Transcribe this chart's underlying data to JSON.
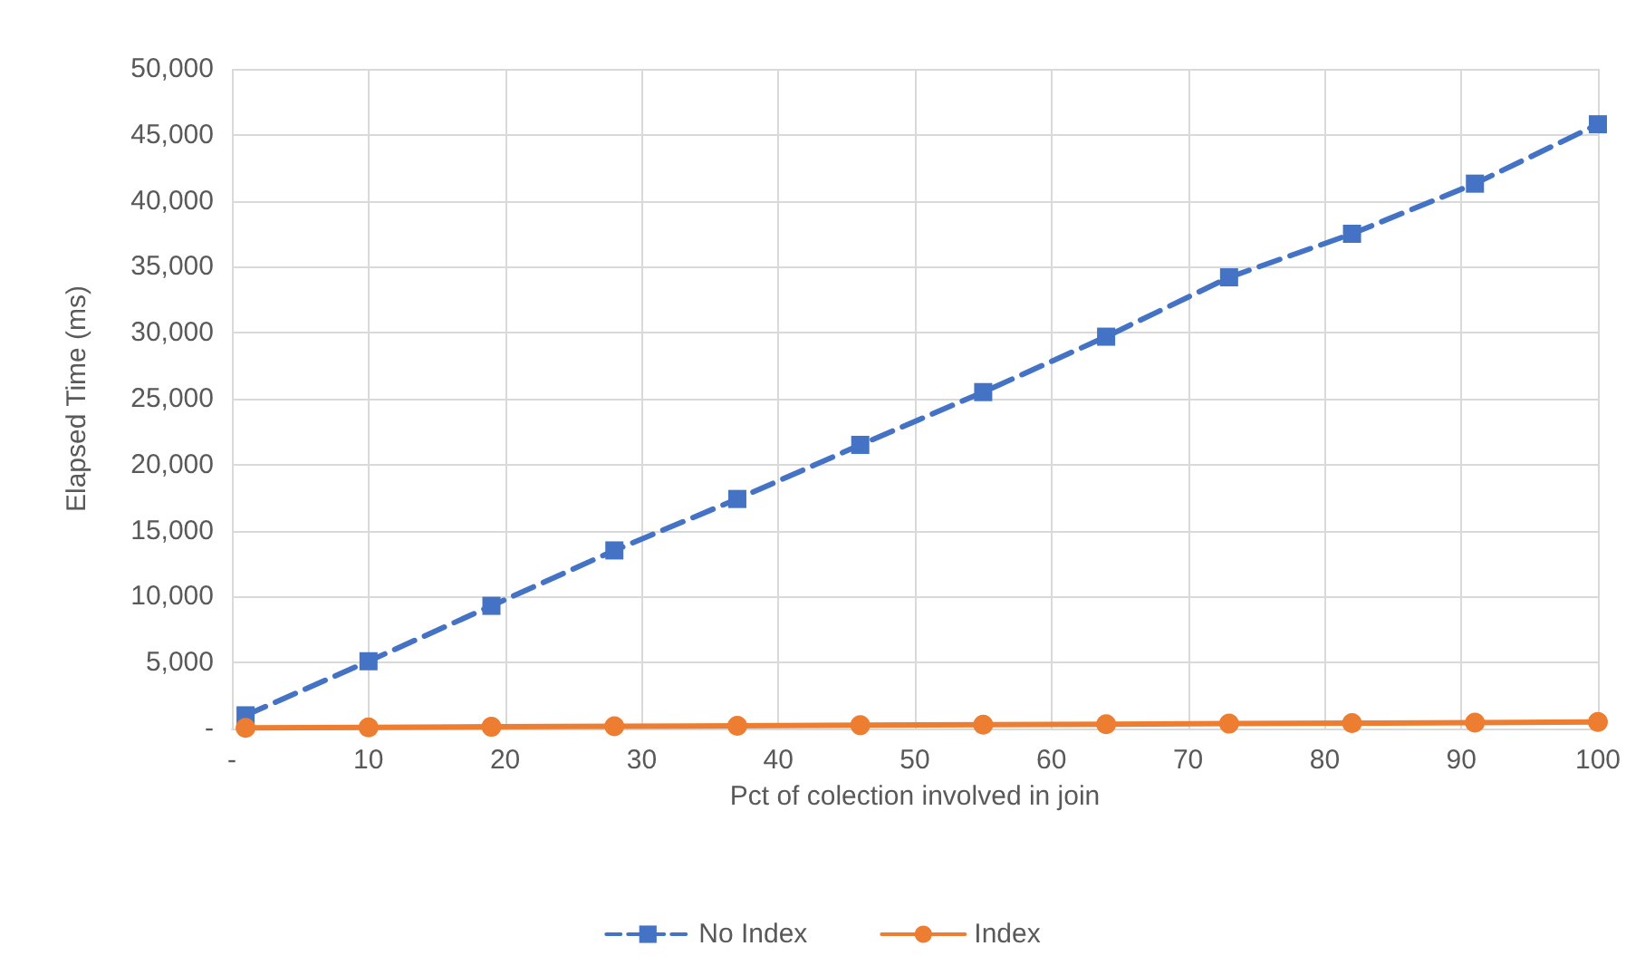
{
  "chart_data": {
    "type": "line",
    "xlabel": "Pct of colection involved in join",
    "ylabel": "Elapsed Time (ms)",
    "x": [
      1,
      10,
      19,
      28,
      37,
      46,
      55,
      64,
      73,
      82,
      91,
      100
    ],
    "series": [
      {
        "name": "No Index",
        "color": "#4472c4",
        "marker": "square",
        "line_style": "dashed",
        "values": [
          1000,
          5100,
          9300,
          13500,
          17400,
          21500,
          25500,
          29700,
          34200,
          37500,
          41300,
          45800
        ]
      },
      {
        "name": "Index",
        "color": "#ed7d31",
        "marker": "circle",
        "line_style": "solid",
        "values": [
          50,
          90,
          130,
          170,
          210,
          250,
          290,
          330,
          370,
          410,
          450,
          500
        ]
      }
    ],
    "xlim": [
      0,
      100
    ],
    "xticks": [
      {
        "value": 0,
        "label": "-"
      },
      10,
      20,
      30,
      40,
      50,
      60,
      70,
      80,
      90,
      100
    ],
    "ylim": [
      0,
      50000
    ],
    "yticks": [
      {
        "value": 0,
        "label": "-"
      },
      {
        "value": 5000,
        "label": "5,000"
      },
      {
        "value": 10000,
        "label": "10,000"
      },
      {
        "value": 15000,
        "label": "15,000"
      },
      {
        "value": 20000,
        "label": "20,000"
      },
      {
        "value": 25000,
        "label": "25,000"
      },
      {
        "value": 30000,
        "label": "30,000"
      },
      {
        "value": 35000,
        "label": "35,000"
      },
      {
        "value": 40000,
        "label": "40,000"
      },
      {
        "value": 45000,
        "label": "45,000"
      },
      {
        "value": 50000,
        "label": "50,000"
      }
    ],
    "grid": true,
    "legend": "bottom"
  }
}
